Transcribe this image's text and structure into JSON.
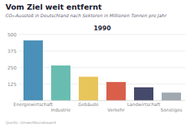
{
  "chart_data": {
    "type": "bar",
    "title": "Vom Ziel weit entfernt",
    "subtitle": "CO₂-Ausstoß in Deutschland nach Sektoren in Millionen Tonnen pro Jahr",
    "annotations": [
      "1990",
      "Quelle: Umweltbundesamt"
    ],
    "categories": [
      "Energiewirtschaft",
      "Industrie",
      "Gebäude",
      "Verkehr",
      "Landwirtschaft",
      "Sonstiges"
    ],
    "values": [
      455,
      265,
      180,
      140,
      100,
      60
    ],
    "colors": [
      "#4a90b8",
      "#68bdb0",
      "#e8c55a",
      "#d95f4b",
      "#454a6b",
      "#a0a8b0"
    ],
    "ylim": [
      0,
      500
    ],
    "yticks": [
      125,
      250,
      375,
      500
    ],
    "grid": true
  }
}
